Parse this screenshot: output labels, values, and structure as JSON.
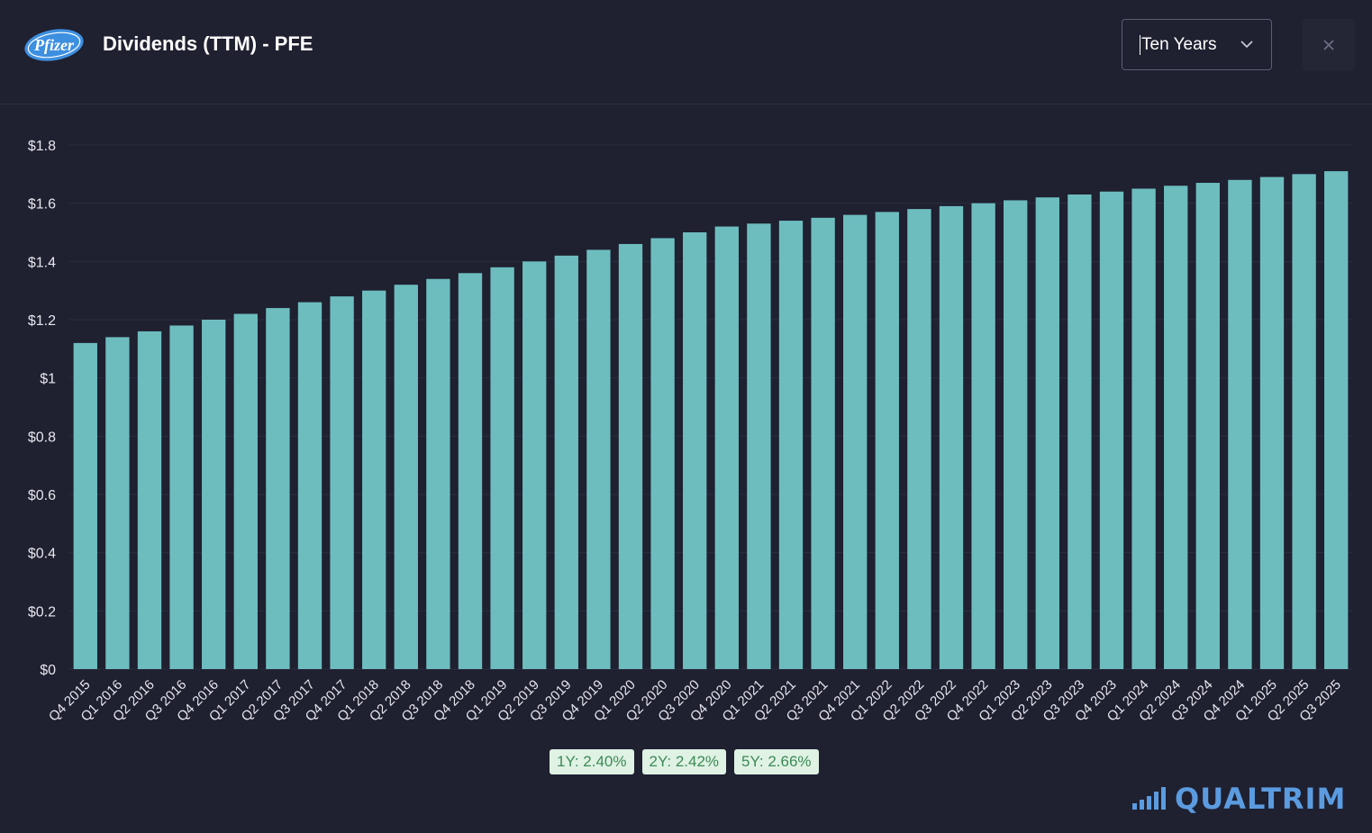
{
  "header": {
    "logo_text": "Pfizer",
    "title": "Dividends (TTM) - PFE",
    "range_value": "Ten Years",
    "close_symbol": "×"
  },
  "icons": {
    "logo": "pfizer-logo-icon",
    "dropdown": "chevron-down-icon",
    "close": "close-icon",
    "brand": "bar-chart-icon"
  },
  "chart_data": {
    "type": "bar",
    "ylabels": [
      "$0",
      "$0.2",
      "$0.4",
      "$0.6",
      "$0.8",
      "$1",
      "$1.2",
      "$1.4",
      "$1.6",
      "$1.8"
    ],
    "ylim": [
      0,
      1.8
    ],
    "grid": true,
    "bar_color": "#6dbdbf",
    "categories": [
      "Q4 2015",
      "Q1 2016",
      "Q2 2016",
      "Q3 2016",
      "Q4 2016",
      "Q1 2017",
      "Q2 2017",
      "Q3 2017",
      "Q4 2017",
      "Q1 2018",
      "Q2 2018",
      "Q3 2018",
      "Q4 2018",
      "Q1 2019",
      "Q2 2019",
      "Q3 2019",
      "Q4 2019",
      "Q1 2020",
      "Q2 2020",
      "Q3 2020",
      "Q4 2020",
      "Q1 2021",
      "Q2 2021",
      "Q3 2021",
      "Q4 2021",
      "Q1 2022",
      "Q2 2022",
      "Q3 2022",
      "Q4 2022",
      "Q1 2023",
      "Q2 2023",
      "Q3 2023",
      "Q4 2023",
      "Q1 2024",
      "Q2 2024",
      "Q3 2024",
      "Q4 2024",
      "Q1 2025",
      "Q2 2025",
      "Q3 2025"
    ],
    "values": [
      1.12,
      1.14,
      1.16,
      1.18,
      1.2,
      1.22,
      1.24,
      1.26,
      1.28,
      1.3,
      1.32,
      1.34,
      1.36,
      1.38,
      1.4,
      1.42,
      1.44,
      1.46,
      1.48,
      1.5,
      1.52,
      1.53,
      1.54,
      1.55,
      1.56,
      1.57,
      1.58,
      1.59,
      1.6,
      1.61,
      1.62,
      1.63,
      1.64,
      1.65,
      1.66,
      1.67,
      1.68,
      1.69,
      1.7,
      1.71
    ]
  },
  "growth_badges": [
    "1Y: 2.40%",
    "2Y: 2.42%",
    "5Y: 2.66%"
  ],
  "brand": {
    "text": "QUALTRIM",
    "color": "#5b9be0"
  }
}
